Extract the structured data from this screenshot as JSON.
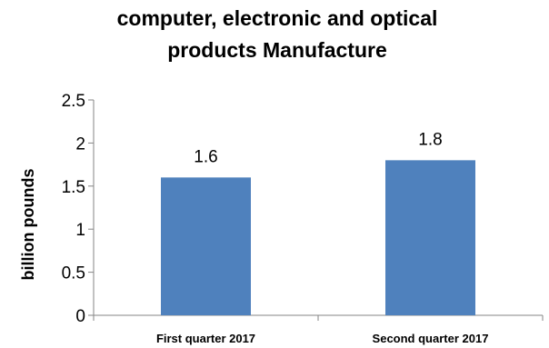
{
  "chart_data": {
    "type": "bar",
    "title": [
      "computer, electronic and optical",
      "products Manufacture"
    ],
    "xlabel": "",
    "ylabel": "billion pounds",
    "categories": [
      "First quarter 2017",
      "Second quarter 2017"
    ],
    "values": [
      1.6,
      1.8
    ],
    "data_labels": [
      "1.6",
      "1.8"
    ],
    "y_ticks": [
      "0",
      "0.5",
      "1",
      "1.5",
      "2",
      "2.5"
    ],
    "ylim": [
      0,
      2.5
    ],
    "grid": false,
    "legend": "none",
    "colors": {
      "bar": "#4F81BD",
      "axis": "#868686"
    }
  }
}
